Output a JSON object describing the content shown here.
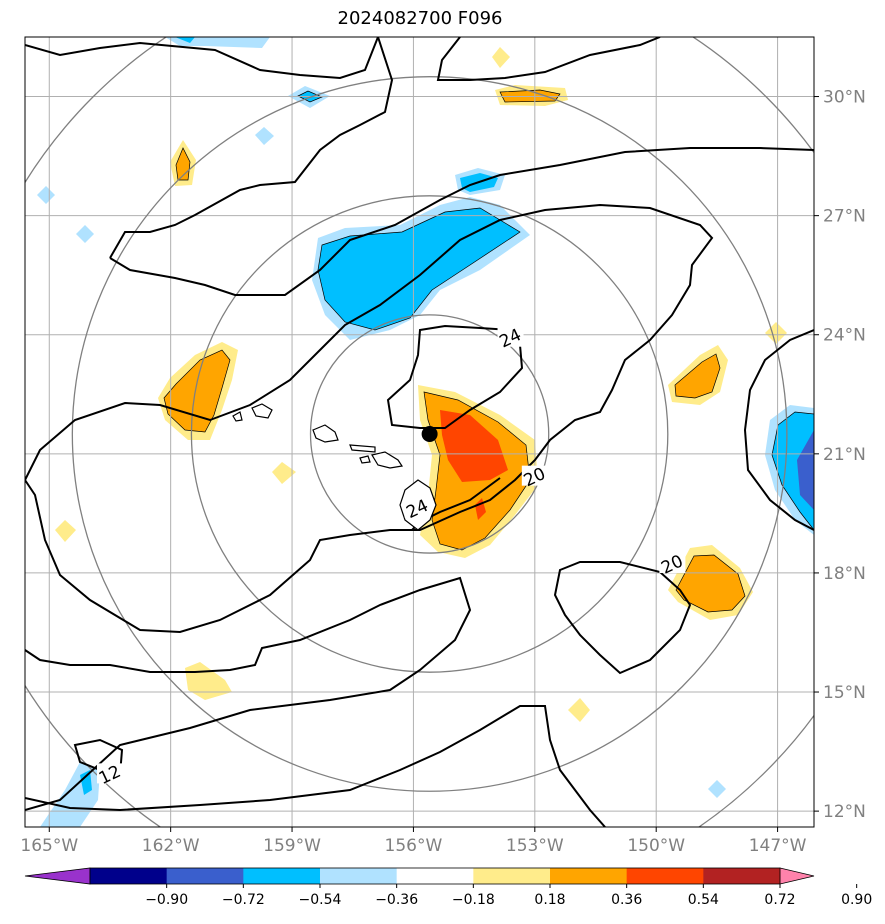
{
  "title": "2024082700 F096",
  "map": {
    "lon_range": [
      -165.6,
      -146.1
    ],
    "lat_range": [
      11.6,
      31.5
    ],
    "lon_ticks": [
      -165,
      -162,
      -159,
      -156,
      -153,
      -150,
      -147
    ],
    "lon_labels": [
      "165°W",
      "162°W",
      "159°W",
      "156°W",
      "153°W",
      "150°W",
      "147°W"
    ],
    "lat_ticks": [
      12,
      15,
      18,
      21,
      24,
      27,
      30
    ],
    "lat_labels": [
      "12°N",
      "15°N",
      "18°N",
      "21°N",
      "24°N",
      "27°N",
      "30°N"
    ],
    "grid": true,
    "center_marker": {
      "lon": -155.6,
      "lat": 21.5
    },
    "range_rings_deg": [
      3,
      6,
      9,
      12
    ],
    "contour_labels": [
      {
        "text": "24",
        "lon": -153.6,
        "lat": 23.9
      },
      {
        "text": "20",
        "lon": -153.0,
        "lat": 20.4
      },
      {
        "text": "24",
        "lon": -155.9,
        "lat": 19.6
      },
      {
        "text": "20",
        "lon": -149.6,
        "lat": 18.2
      },
      {
        "text": "12",
        "lon": -163.5,
        "lat": 12.9
      }
    ]
  },
  "colorbar": {
    "levels": [
      "−0.90",
      "−0.72",
      "−0.54",
      "−0.36",
      "−0.18",
      "0.18",
      "0.36",
      "0.54",
      "0.72",
      "0.90"
    ],
    "colors": [
      "#9932cc",
      "#00008b",
      "#3a5fcd",
      "#00bfff",
      "#b0e2ff",
      "#ffffff",
      "#ffec8b",
      "#ffa500",
      "#ff4500",
      "#b22222",
      "#ff82ab"
    ],
    "extend": "both"
  }
}
